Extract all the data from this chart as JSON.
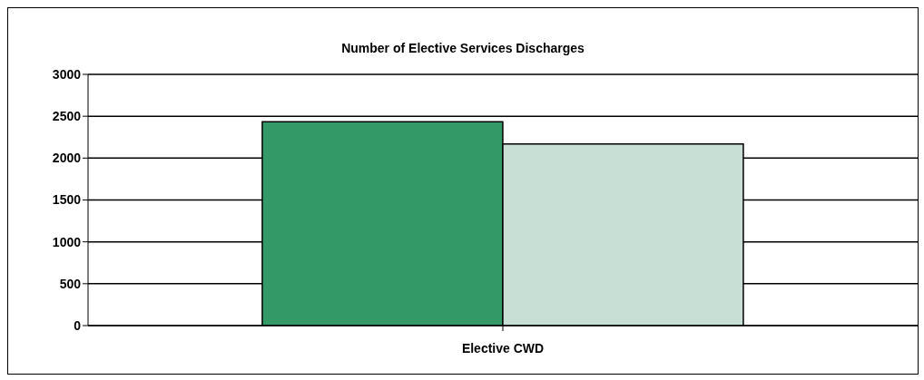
{
  "chart_data": {
    "type": "bar",
    "title": "Number of Elective Services Discharges",
    "categories": [
      "Elective CWD"
    ],
    "series": [
      {
        "color": "#339966",
        "values": [
          2435
        ]
      },
      {
        "color": "#c8dfd6",
        "values": [
          2170
        ]
      }
    ],
    "ylim": [
      0,
      3000
    ],
    "yticks": [
      0,
      500,
      1000,
      1500,
      2000,
      2500,
      3000
    ],
    "grid": "y",
    "legend": false
  }
}
